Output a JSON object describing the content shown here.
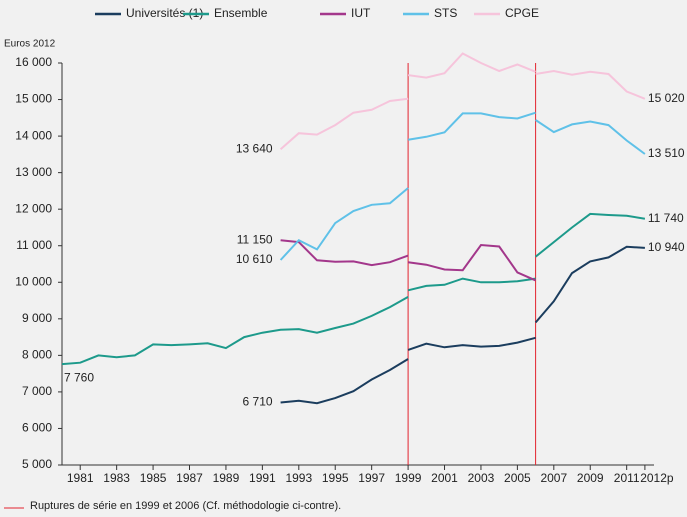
{
  "chart_data": {
    "type": "line",
    "ylabel": "Euros 2012",
    "x": [
      1980,
      1981,
      1982,
      1983,
      1984,
      1985,
      1986,
      1987,
      1988,
      1989,
      1990,
      1991,
      1992,
      1993,
      1994,
      1995,
      1996,
      1997,
      1998,
      1999,
      1999,
      1999,
      2000,
      2001,
      2002,
      2003,
      2004,
      2005,
      2006,
      2006,
      2006,
      2007,
      2008,
      2009,
      2010,
      2011,
      2012
    ],
    "series": [
      {
        "name": "Universités (1)",
        "color": "#1b3d5e",
        "values": [
          null,
          null,
          null,
          null,
          null,
          null,
          null,
          null,
          null,
          null,
          null,
          null,
          6710,
          6760,
          6690,
          6830,
          7020,
          7340,
          7600,
          7900,
          null,
          8150,
          8320,
          8220,
          8280,
          8240,
          8260,
          8350,
          8480,
          null,
          8900,
          9480,
          10250,
          10570,
          10680,
          10970,
          10940
        ],
        "value_labels": [
          null,
          null,
          null,
          null,
          null,
          null,
          null,
          null,
          null,
          null,
          null,
          null,
          "6 710",
          null,
          null,
          null,
          null,
          null,
          null,
          null,
          null,
          null,
          null,
          null,
          null,
          null,
          null,
          null,
          null,
          null,
          null,
          null,
          null,
          null,
          null,
          null,
          "10 940"
        ]
      },
      {
        "name": "Ensemble",
        "color": "#1d9a8b",
        "values": [
          7760,
          7800,
          8000,
          7950,
          8000,
          8300,
          8280,
          8300,
          8330,
          8200,
          8500,
          8620,
          8700,
          8720,
          8620,
          8750,
          8870,
          9080,
          9320,
          9600,
          null,
          9780,
          9900,
          9930,
          10100,
          10000,
          10000,
          10030,
          10100,
          null,
          10700,
          11100,
          11500,
          11870,
          11840,
          11820,
          11740
        ],
        "value_labels": [
          "7 760",
          null,
          null,
          null,
          null,
          null,
          null,
          null,
          null,
          null,
          null,
          null,
          null,
          null,
          null,
          null,
          null,
          null,
          null,
          null,
          null,
          null,
          null,
          null,
          null,
          null,
          null,
          null,
          null,
          null,
          null,
          null,
          null,
          null,
          null,
          null,
          "11 740"
        ]
      },
      {
        "name": "IUT",
        "color": "#a3378b",
        "values": [
          null,
          null,
          null,
          null,
          null,
          null,
          null,
          null,
          null,
          null,
          null,
          null,
          11150,
          11100,
          10600,
          10560,
          10570,
          10470,
          10550,
          10730,
          null,
          10550,
          10480,
          10350,
          10330,
          11020,
          10980,
          10270,
          10050,
          null,
          null,
          null,
          null,
          null,
          null,
          null,
          null
        ],
        "value_labels": [
          null,
          null,
          null,
          null,
          null,
          null,
          null,
          null,
          null,
          null,
          null,
          null,
          "11 150",
          null,
          null,
          null,
          null,
          null,
          null,
          null,
          null,
          null,
          null,
          null,
          null,
          null,
          null,
          null,
          null,
          null,
          null,
          null,
          null,
          null,
          null,
          null,
          null
        ]
      },
      {
        "name": "STS",
        "color": "#5fc1e8",
        "values": [
          null,
          null,
          null,
          null,
          null,
          null,
          null,
          null,
          null,
          null,
          null,
          null,
          10610,
          11150,
          10900,
          11620,
          11950,
          12120,
          12160,
          12580,
          null,
          13900,
          13980,
          14100,
          14620,
          14620,
          14520,
          14480,
          14640,
          null,
          14440,
          14110,
          14320,
          14400,
          14300,
          13880,
          13510
        ],
        "value_labels": [
          null,
          null,
          null,
          null,
          null,
          null,
          null,
          null,
          null,
          null,
          null,
          null,
          "10 610",
          null,
          null,
          null,
          null,
          null,
          null,
          null,
          null,
          null,
          null,
          null,
          null,
          null,
          null,
          null,
          null,
          null,
          null,
          null,
          null,
          null,
          null,
          null,
          "13 510"
        ]
      },
      {
        "name": "CPGE",
        "color": "#f6c4db",
        "values": [
          null,
          null,
          null,
          null,
          null,
          null,
          null,
          null,
          null,
          null,
          null,
          null,
          13640,
          14080,
          14040,
          14300,
          14640,
          14720,
          14960,
          15020,
          null,
          15670,
          15600,
          15720,
          16260,
          16000,
          15780,
          15960,
          15760,
          null,
          15700,
          15780,
          15680,
          15760,
          15700,
          15220,
          15020
        ],
        "value_labels": [
          null,
          null,
          null,
          null,
          null,
          null,
          null,
          null,
          null,
          null,
          null,
          null,
          "13 640",
          null,
          null,
          null,
          null,
          null,
          null,
          null,
          null,
          null,
          null,
          null,
          null,
          null,
          null,
          null,
          null,
          null,
          null,
          null,
          null,
          null,
          null,
          null,
          "15 020"
        ]
      }
    ],
    "breaks": [
      1999,
      2006
    ],
    "break_color": "#e3232e",
    "break_note": "Ruptures de série en 1999 et 2006 (Cf. méthodologie ci-contre).",
    "xlim": [
      1980,
      2012.5
    ],
    "xticks": [
      1981,
      1983,
      1985,
      1987,
      1989,
      1991,
      1993,
      1995,
      1997,
      1999,
      2001,
      2003,
      2005,
      2007,
      2009,
      2011,
      {
        "value": 2012,
        "label": "2012p"
      }
    ],
    "ylim": [
      5000,
      16000
    ],
    "yticks": [
      {
        "value": 5000,
        "label": "5 000"
      },
      {
        "value": 6000,
        "label": "6 000"
      },
      {
        "value": 7000,
        "label": "7 000"
      },
      {
        "value": 8000,
        "label": "8 000"
      },
      {
        "value": 9000,
        "label": "9 000"
      },
      {
        "value": 10000,
        "label": "10 000"
      },
      {
        "value": 11000,
        "label": "11 000"
      },
      {
        "value": 12000,
        "label": "12 000"
      },
      {
        "value": 13000,
        "label": "13 000"
      },
      {
        "value": 14000,
        "label": "14 000"
      },
      {
        "value": 15000,
        "label": "15 000"
      },
      {
        "value": 16000,
        "label": "16 000"
      }
    ]
  }
}
